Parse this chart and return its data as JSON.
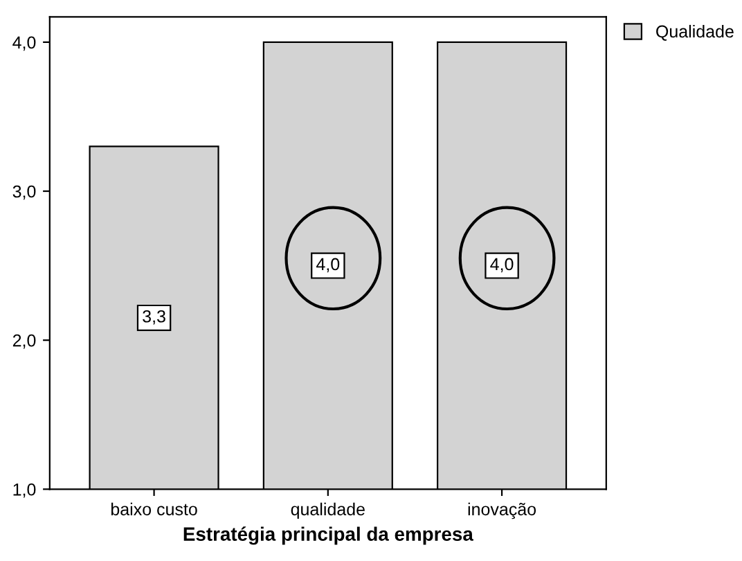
{
  "chart_data": {
    "type": "bar",
    "xlabel": "Estratégia principal da empresa",
    "categories": [
      "baixo custo",
      "qualidade",
      "inovação"
    ],
    "series": [
      {
        "name": "Qualidade",
        "color": "#d3d3d3",
        "values": [
          3.3,
          4.0,
          4.0
        ],
        "value_labels": [
          "3,3",
          "4,0",
          "4,0"
        ]
      }
    ],
    "ylim": [
      1,
      4.17
    ],
    "yticks": [
      {
        "value": 1,
        "label": "1,0"
      },
      {
        "value": 2,
        "label": "2,0"
      },
      {
        "value": 3,
        "label": "3,0"
      },
      {
        "value": 4,
        "label": "4,0"
      }
    ],
    "grid": false,
    "legend": "top right"
  }
}
